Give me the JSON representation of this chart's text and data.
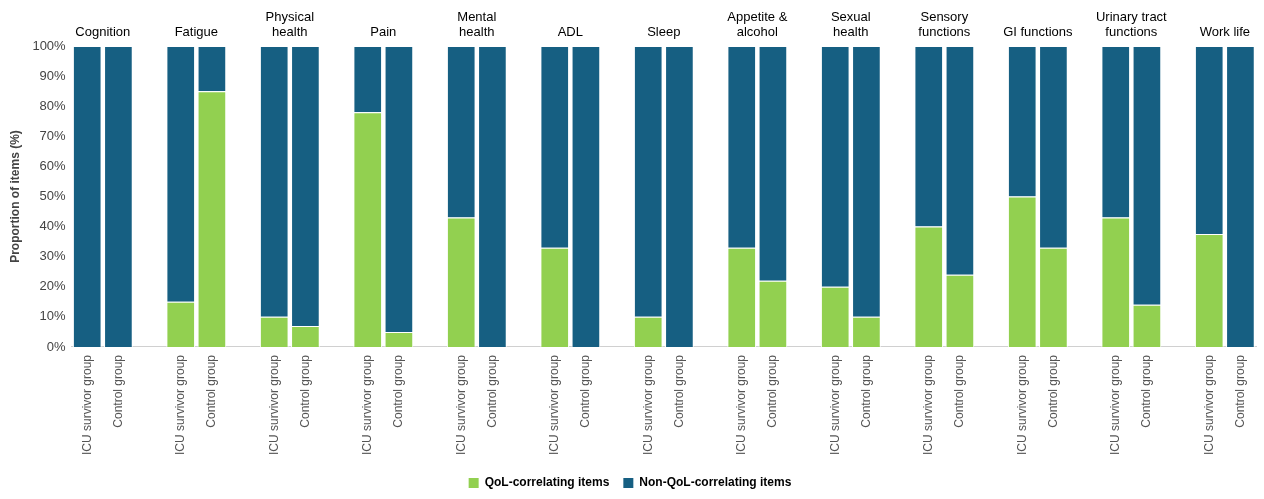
{
  "chart_data": {
    "type": "bar",
    "stacked": true,
    "ylabel": "Proportion of items (%)",
    "categories": [
      "ICU survivor group",
      "Control group",
      null,
      "ICU survivor group",
      "Control group",
      null,
      "ICU survivor group",
      "Control group",
      null,
      "ICU survivor group",
      "Control group",
      null,
      "ICU survivor group",
      "Control group",
      null,
      "ICU survivor group",
      "Control group",
      null,
      "ICU survivor group",
      "Control group",
      null,
      "ICU survivor group",
      "Control group",
      null,
      "ICU survivor group",
      "Control group",
      null,
      "ICU survivor group",
      "Control group",
      null,
      "ICU survivor group",
      "Control group",
      null,
      "ICU survivor group",
      "Control group",
      null,
      "ICU survivor group",
      "Control group"
    ],
    "annotations": [
      "Cognition",
      "Fatigue",
      "Physical health",
      "Pain",
      "Mental health",
      "ADL",
      "Sleep",
      "Appetite & alcohol",
      "Sexual health",
      "Sensory functions",
      "GI functions",
      "Urinary tract functions",
      "Work life"
    ],
    "series": [
      {
        "name": "QoL-correlating items",
        "color": "#92d050",
        "values": [
          0,
          0,
          null,
          15,
          85,
          null,
          10,
          7,
          null,
          78,
          5,
          null,
          43,
          0,
          null,
          33,
          0,
          null,
          10,
          0,
          null,
          33,
          22,
          null,
          20,
          10,
          null,
          40,
          24,
          null,
          50,
          33,
          null,
          43,
          14,
          null,
          37.5,
          0
        ]
      },
      {
        "name": "Non-QoL-correlating items",
        "color": "#165f82",
        "values": [
          100,
          100,
          null,
          85,
          15,
          null,
          90,
          93,
          null,
          22,
          95,
          null,
          57,
          100,
          null,
          67,
          100,
          null,
          90,
          100,
          null,
          67,
          78,
          null,
          80,
          90,
          null,
          60,
          76,
          null,
          50,
          67,
          null,
          57,
          86,
          null,
          62.5,
          100
        ]
      }
    ],
    "ylim": [
      0,
      100
    ],
    "yticks": [
      {
        "value": 0,
        "label": "0%"
      },
      {
        "value": 10,
        "label": "10%"
      },
      {
        "value": 20,
        "label": "20%"
      },
      {
        "value": 30,
        "label": "30%"
      },
      {
        "value": 40,
        "label": "40%"
      },
      {
        "value": 50,
        "label": "50%"
      },
      {
        "value": 60,
        "label": "60%"
      },
      {
        "value": 70,
        "label": "70%"
      },
      {
        "value": 80,
        "label": "80%"
      },
      {
        "value": 90,
        "label": "90%"
      },
      {
        "value": 100,
        "label": "100%"
      }
    ],
    "grid": false,
    "legend": "bottom"
  }
}
